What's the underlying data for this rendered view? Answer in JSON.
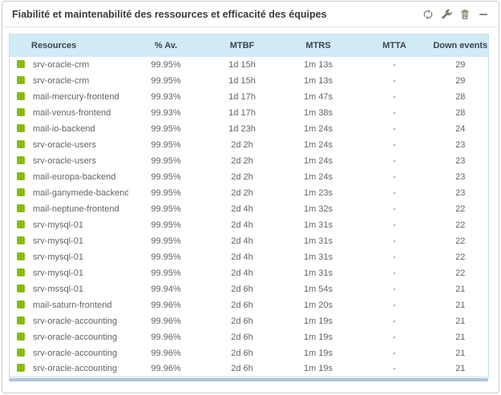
{
  "widget": {
    "title": "Fiabilité et maintenabilité des ressources et efficacité des équipes",
    "toolbar_icons": [
      "refresh-icon",
      "wrench-icon",
      "trash-icon",
      "collapse-icon"
    ]
  },
  "colors": {
    "status_ok": "#88b917",
    "table_header_bg": "#d0eaf6",
    "table_border": "#c2dfec",
    "icon_gray": "#847d6e",
    "scrollbar_thumb": "#b7c8dd"
  },
  "table": {
    "columns": [
      "Resources",
      "% Av.",
      "MTBF",
      "MTRS",
      "MTTA",
      "Down events"
    ],
    "rows": [
      {
        "status_color": "#88b917",
        "resource": "srv-oracle-crm",
        "availability": "99.95%",
        "mtbf": "1d 15h",
        "mtrs": "1m 13s",
        "mtta": "-",
        "down_events": "29"
      },
      {
        "status_color": "#88b917",
        "resource": "srv-oracle-crm",
        "availability": "99.95%",
        "mtbf": "1d 15h",
        "mtrs": "1m 13s",
        "mtta": "-",
        "down_events": "29"
      },
      {
        "status_color": "#88b917",
        "resource": "mail-mercury-frontend",
        "availability": "99.93%",
        "mtbf": "1d 17h",
        "mtrs": "1m 47s",
        "mtta": "-",
        "down_events": "28"
      },
      {
        "status_color": "#88b917",
        "resource": "mail-venus-frontend",
        "availability": "99.93%",
        "mtbf": "1d 17h",
        "mtrs": "1m 38s",
        "mtta": "-",
        "down_events": "28"
      },
      {
        "status_color": "#88b917",
        "resource": "mail-io-backend",
        "availability": "99.95%",
        "mtbf": "1d 23h",
        "mtrs": "1m 24s",
        "mtta": "-",
        "down_events": "24"
      },
      {
        "status_color": "#88b917",
        "resource": "srv-oracle-users",
        "availability": "99.95%",
        "mtbf": "2d 2h",
        "mtrs": "1m 24s",
        "mtta": "-",
        "down_events": "23"
      },
      {
        "status_color": "#88b917",
        "resource": "srv-oracle-users",
        "availability": "99.95%",
        "mtbf": "2d 2h",
        "mtrs": "1m 24s",
        "mtta": "-",
        "down_events": "23"
      },
      {
        "status_color": "#88b917",
        "resource": "mail-europa-backend",
        "availability": "99.95%",
        "mtbf": "2d 2h",
        "mtrs": "1m 24s",
        "mtta": "-",
        "down_events": "23"
      },
      {
        "status_color": "#88b917",
        "resource": "mail-ganymede-backend",
        "availability": "99.95%",
        "mtbf": "2d 2h",
        "mtrs": "1m 23s",
        "mtta": "-",
        "down_events": "23"
      },
      {
        "status_color": "#88b917",
        "resource": "mail-neptune-frontend",
        "availability": "99.95%",
        "mtbf": "2d 4h",
        "mtrs": "1m 32s",
        "mtta": "-",
        "down_events": "22"
      },
      {
        "status_color": "#88b917",
        "resource": "srv-mysql-01",
        "availability": "99.95%",
        "mtbf": "2d 4h",
        "mtrs": "1m 31s",
        "mtta": "-",
        "down_events": "22"
      },
      {
        "status_color": "#88b917",
        "resource": "srv-mysql-01",
        "availability": "99.95%",
        "mtbf": "2d 4h",
        "mtrs": "1m 31s",
        "mtta": "-",
        "down_events": "22"
      },
      {
        "status_color": "#88b917",
        "resource": "srv-mysql-01",
        "availability": "99.95%",
        "mtbf": "2d 4h",
        "mtrs": "1m 31s",
        "mtta": "-",
        "down_events": "22"
      },
      {
        "status_color": "#88b917",
        "resource": "srv-mysql-01",
        "availability": "99.95%",
        "mtbf": "2d 4h",
        "mtrs": "1m 31s",
        "mtta": "-",
        "down_events": "22"
      },
      {
        "status_color": "#88b917",
        "resource": "srv-mssql-01",
        "availability": "99.94%",
        "mtbf": "2d 6h",
        "mtrs": "1m 54s",
        "mtta": "-",
        "down_events": "21"
      },
      {
        "status_color": "#88b917",
        "resource": "mail-saturn-frontend",
        "availability": "99.96%",
        "mtbf": "2d 6h",
        "mtrs": "1m 20s",
        "mtta": "-",
        "down_events": "21"
      },
      {
        "status_color": "#88b917",
        "resource": "srv-oracle-accounting",
        "availability": "99.96%",
        "mtbf": "2d 6h",
        "mtrs": "1m 19s",
        "mtta": "-",
        "down_events": "21"
      },
      {
        "status_color": "#88b917",
        "resource": "srv-oracle-accounting",
        "availability": "99.96%",
        "mtbf": "2d 6h",
        "mtrs": "1m 19s",
        "mtta": "-",
        "down_events": "21"
      },
      {
        "status_color": "#88b917",
        "resource": "srv-oracle-accounting",
        "availability": "99.96%",
        "mtbf": "2d 6h",
        "mtrs": "1m 19s",
        "mtta": "-",
        "down_events": "21"
      },
      {
        "status_color": "#88b917",
        "resource": "srv-oracle-accounting",
        "availability": "99.96%",
        "mtbf": "2d 6h",
        "mtrs": "1m 19s",
        "mtta": "-",
        "down_events": "21"
      }
    ]
  }
}
